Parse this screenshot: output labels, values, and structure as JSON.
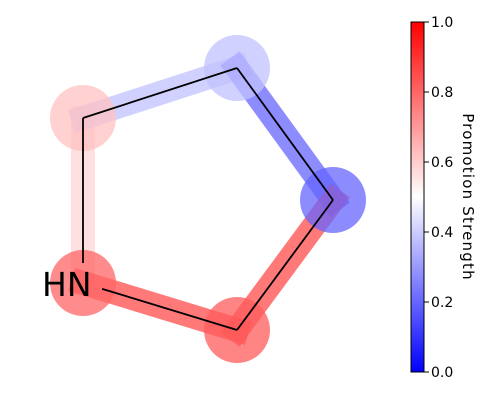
{
  "molecule": {
    "atom_label": "HN",
    "atoms": [
      {
        "id": "N",
        "label": "HN",
        "value": 0.8
      },
      {
        "id": "C2",
        "label": "",
        "value": 0.62
      },
      {
        "id": "C3",
        "label": "",
        "value": 0.38
      },
      {
        "id": "C4",
        "label": "",
        "value": 0.2
      },
      {
        "id": "C5",
        "label": "",
        "value": 0.82
      }
    ],
    "bonds": [
      {
        "from": "N",
        "to": "C2",
        "value": 0.58
      },
      {
        "from": "C2",
        "to": "C3",
        "value": 0.38
      },
      {
        "from": "C3",
        "to": "C4",
        "value": 0.2
      },
      {
        "from": "C4",
        "to": "C5",
        "value": 0.85
      },
      {
        "from": "C5",
        "to": "N",
        "value": 0.85
      }
    ]
  },
  "colorbar": {
    "label": "Promotion Strength",
    "colormap": "bwr",
    "min": 0.0,
    "max": 1.0,
    "ticks": [
      "0.0",
      "0.2",
      "0.4",
      "0.6",
      "0.8",
      "1.0"
    ],
    "colors": {
      "low": "#0000ff",
      "mid": "#ffffff",
      "high": "#ff0000"
    }
  }
}
